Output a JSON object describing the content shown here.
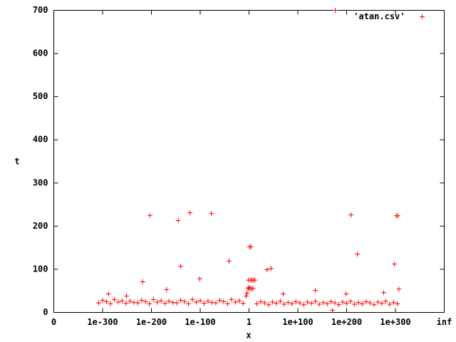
{
  "chart_data": {
    "type": "scatter",
    "x_label": "x",
    "y_label": "t",
    "xlim": [
      -400,
      400
    ],
    "xticks": [
      {
        "value": -400,
        "label": "0"
      },
      {
        "value": -300,
        "label": "1e-300"
      },
      {
        "value": -200,
        "label": "1e-200"
      },
      {
        "value": -100,
        "label": "1e-100"
      },
      {
        "value": 0,
        "label": "1"
      },
      {
        "value": 100,
        "label": "1e+100"
      },
      {
        "value": 200,
        "label": "1e+200"
      },
      {
        "value": 300,
        "label": "1e+300"
      },
      {
        "value": 400,
        "label": "inf"
      }
    ],
    "ylim": [
      0,
      700
    ],
    "yticks": [
      0,
      100,
      200,
      300,
      400,
      500,
      600,
      700
    ],
    "legend": "top-right",
    "series": [
      {
        "name": "'atan.csv'",
        "color": "#ff0000",
        "x": [
          -308,
          -300,
          -292,
          -284,
          -276,
          -268,
          -260,
          -252,
          -244,
          -236,
          -228,
          -220,
          -212,
          -204,
          -196,
          -188,
          -180,
          -172,
          -164,
          -156,
          -148,
          -140,
          -132,
          -124,
          -116,
          -108,
          -100,
          -92,
          -84,
          -76,
          -68,
          -60,
          -52,
          -44,
          -36,
          -28,
          -20,
          -12,
          16,
          24,
          32,
          40,
          48,
          56,
          64,
          72,
          80,
          88,
          96,
          104,
          112,
          120,
          128,
          136,
          144,
          152,
          160,
          168,
          176,
          184,
          192,
          200,
          208,
          216,
          224,
          232,
          240,
          248,
          256,
          264,
          272,
          280,
          288,
          296,
          304,
          -6,
          -4,
          -2,
          0,
          2,
          5,
          8,
          -1,
          3,
          6,
          9,
          12,
          1,
          4,
          -203,
          -145,
          -121,
          -77,
          -140,
          -101,
          -41,
          -218,
          -251,
          -288,
          -169,
          177,
          209,
          222,
          302,
          305,
          298,
          307,
          45,
          37,
          199,
          171,
          136,
          276,
          70
        ],
        "values": [
          22,
          28,
          25,
          20,
          30,
          24,
          27,
          21,
          26,
          23,
          22,
          28,
          25,
          20,
          30,
          24,
          27,
          21,
          26,
          23,
          22,
          28,
          25,
          20,
          30,
          24,
          27,
          21,
          26,
          23,
          22,
          28,
          25,
          20,
          30,
          24,
          27,
          21,
          20,
          25,
          22,
          18,
          24,
          21,
          26,
          19,
          23,
          20,
          25,
          22,
          18,
          24,
          21,
          26,
          19,
          23,
          20,
          25,
          22,
          18,
          24,
          21,
          26,
          19,
          23,
          20,
          25,
          22,
          18,
          24,
          21,
          26,
          19,
          23,
          20,
          38,
          45,
          55,
          58,
          55,
          55,
          55,
          75,
          75,
          75,
          75,
          75,
          152,
          152,
          225,
          213,
          231,
          229,
          107,
          78,
          119,
          71,
          38,
          43,
          53,
          700,
          226,
          135,
          224,
          224,
          112,
          54,
          102,
          99,
          43,
          5,
          51,
          46,
          43
        ]
      }
    ]
  }
}
